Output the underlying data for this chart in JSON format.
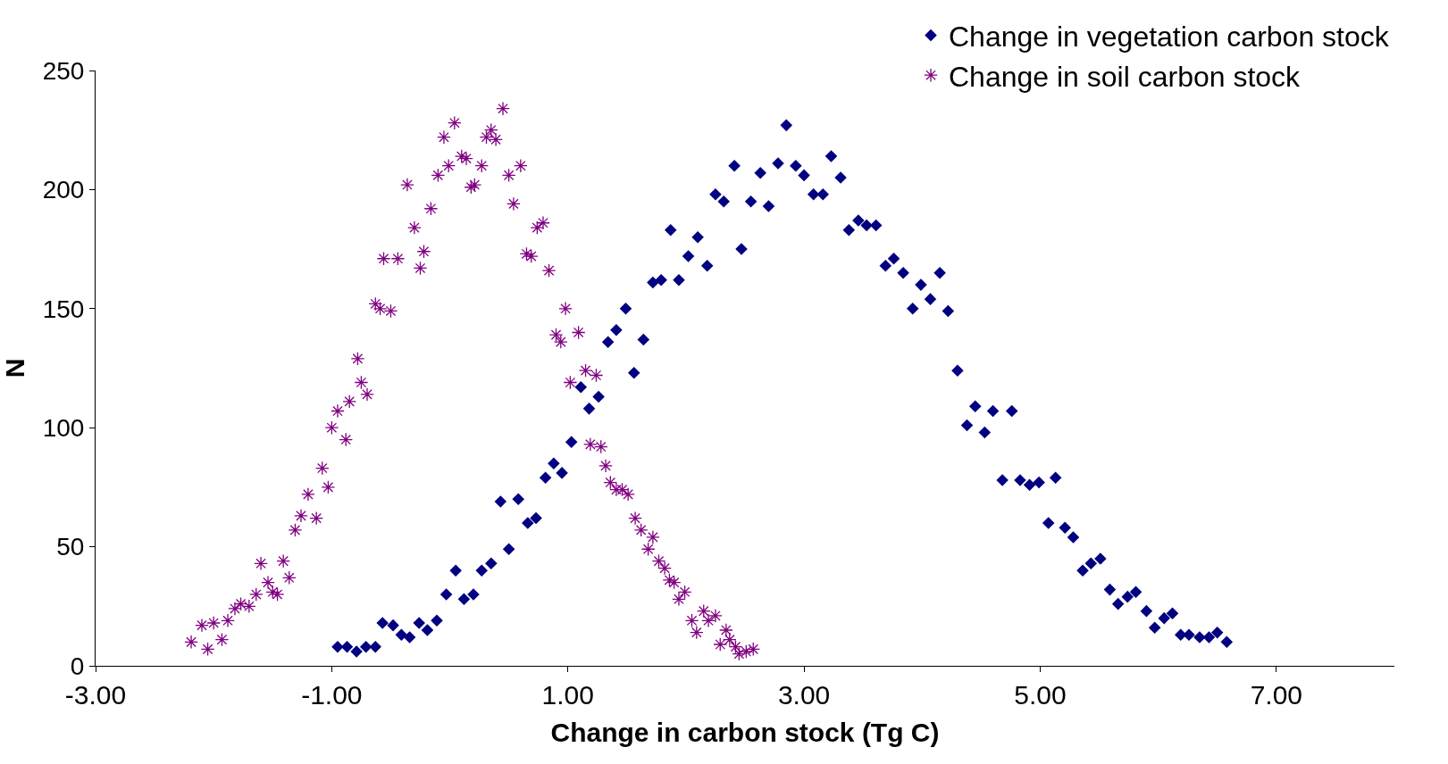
{
  "chart_data": {
    "type": "scatter",
    "xlabel": "Change in carbon stock (Tg C)",
    "ylabel": "N",
    "xlim": [
      -3,
      8
    ],
    "xticks": [
      {
        "value": -3,
        "label": "-3.00"
      },
      {
        "value": -1,
        "label": "-1.00"
      },
      {
        "value": 1,
        "label": "1.00"
      },
      {
        "value": 3,
        "label": "3.00"
      },
      {
        "value": 5,
        "label": "5.00"
      },
      {
        "value": 7,
        "label": "7.00"
      }
    ],
    "ylim": [
      0,
      250
    ],
    "yticks": [
      0,
      50,
      100,
      150,
      200,
      250
    ],
    "legend": "top right",
    "series": [
      {
        "name": "Change in vegetation carbon stock",
        "color": "#000080",
        "marker": "diamond",
        "x": [
          -0.95,
          -0.87,
          -0.79,
          -0.71,
          -0.63,
          -0.57,
          -0.48,
          -0.41,
          -0.34,
          -0.26,
          -0.19,
          -0.11,
          -0.03,
          0.05,
          0.12,
          0.2,
          0.27,
          0.35,
          0.43,
          0.5,
          0.58,
          0.66,
          0.73,
          0.81,
          0.88,
          0.95,
          1.03,
          1.11,
          1.18,
          1.26,
          1.34,
          1.41,
          1.49,
          1.56,
          1.64,
          1.72,
          1.79,
          1.87,
          1.94,
          2.02,
          2.1,
          2.18,
          2.25,
          2.32,
          2.41,
          2.47,
          2.55,
          2.63,
          2.7,
          2.78,
          2.85,
          2.93,
          3.0,
          3.08,
          3.16,
          3.23,
          3.31,
          3.38,
          3.46,
          3.53,
          3.61,
          3.69,
          3.76,
          3.84,
          3.92,
          3.99,
          4.07,
          4.15,
          4.22,
          4.3,
          4.38,
          4.45,
          4.53,
          4.6,
          4.68,
          4.76,
          4.83,
          4.91,
          4.99,
          5.07,
          5.13,
          5.21,
          5.28,
          5.36,
          5.43,
          5.51,
          5.59,
          5.66,
          5.74,
          5.81,
          5.9,
          5.97,
          6.05,
          6.12,
          6.19,
          6.26,
          6.35,
          6.43,
          6.5,
          6.58
        ],
        "values": [
          8,
          8,
          6,
          8,
          8,
          18,
          17,
          13,
          12,
          18,
          15,
          19,
          30,
          40,
          28,
          30,
          40,
          43,
          69,
          49,
          70,
          60,
          62,
          79,
          85,
          81,
          94,
          117,
          108,
          113,
          136,
          141,
          150,
          123,
          137,
          161,
          162,
          183,
          162,
          172,
          180,
          168,
          198,
          195,
          210,
          175,
          195,
          207,
          193,
          211,
          227,
          210,
          206,
          198,
          198,
          214,
          205,
          183,
          187,
          185,
          185,
          168,
          171,
          165,
          150,
          160,
          154,
          165,
          149,
          124,
          101,
          109,
          98,
          107,
          78,
          107,
          78,
          76,
          77,
          60,
          79,
          58,
          54,
          40,
          43,
          45,
          32,
          26,
          29,
          31,
          23,
          16,
          20,
          22,
          13,
          13,
          12,
          12,
          14,
          10
        ]
      },
      {
        "name": "Change in soil carbon stock",
        "color": "#800080",
        "marker": "cross",
        "x": [
          -2.19,
          -2.1,
          -2.05,
          -2.0,
          -1.93,
          -1.88,
          -1.82,
          -1.77,
          -1.7,
          -1.64,
          -1.6,
          -1.54,
          -1.5,
          -1.46,
          -1.41,
          -1.36,
          -1.31,
          -1.26,
          -1.2,
          -1.13,
          -1.08,
          -1.03,
          -1.0,
          -0.95,
          -0.88,
          -0.85,
          -0.78,
          -0.75,
          -0.7,
          -0.63,
          -0.59,
          -0.5,
          -0.56,
          -0.44,
          -0.36,
          -0.3,
          -0.25,
          -0.22,
          -0.16,
          -0.1,
          -0.05,
          -0.01,
          0.04,
          0.1,
          0.14,
          0.18,
          0.21,
          0.27,
          0.31,
          0.35,
          0.39,
          0.45,
          0.5,
          0.54,
          0.6,
          0.65,
          0.69,
          0.74,
          0.79,
          0.84,
          0.9,
          0.94,
          0.98,
          1.02,
          1.09,
          1.15,
          1.19,
          1.24,
          1.28,
          1.32,
          1.36,
          1.41,
          1.46,
          1.51,
          1.57,
          1.62,
          1.68,
          1.72,
          1.77,
          1.82,
          1.86,
          1.9,
          1.94,
          1.99,
          2.05,
          2.09,
          2.15,
          2.19,
          2.25,
          2.29,
          2.34,
          2.37,
          2.42,
          2.45,
          2.51,
          2.57
        ],
        "values": [
          10,
          17,
          7,
          18,
          11,
          19,
          24,
          26,
          25,
          30,
          43,
          35,
          31,
          30,
          44,
          37,
          57,
          63,
          72,
          62,
          83,
          75,
          100,
          107,
          95,
          111,
          129,
          119,
          114,
          152,
          150,
          149,
          171,
          171,
          202,
          184,
          167,
          174,
          192,
          206,
          222,
          210,
          228,
          214,
          213,
          201,
          202,
          210,
          222,
          225,
          221,
          234,
          206,
          194,
          210,
          173,
          172,
          184,
          186,
          166,
          139,
          136,
          150,
          119,
          140,
          124,
          93,
          122,
          92,
          84,
          77,
          74,
          74,
          72,
          62,
          57,
          49,
          54,
          44,
          41,
          36,
          35,
          28,
          31,
          19,
          14,
          23,
          19,
          21,
          9,
          15,
          11,
          8,
          5,
          6,
          7
        ]
      }
    ]
  }
}
